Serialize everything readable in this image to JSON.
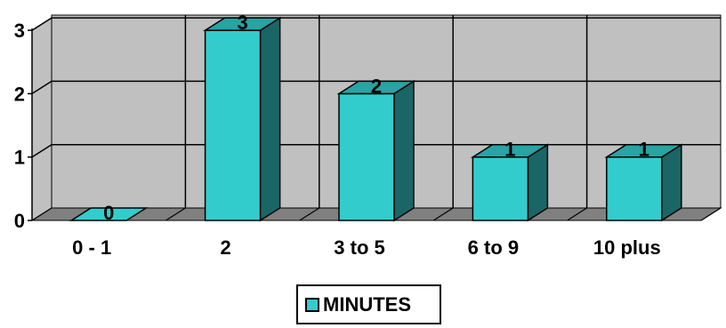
{
  "chart_data": {
    "type": "bar",
    "style": "3d",
    "categories": [
      "0 - 1",
      "2",
      "3 to 5",
      "6 to 9",
      "10 plus"
    ],
    "series": [
      {
        "name": "MINUTES",
        "values": [
          0,
          3,
          2,
          1,
          1
        ]
      }
    ],
    "yticks": [
      0,
      1,
      2,
      3
    ],
    "ylim": [
      0,
      3
    ],
    "data_labels": [
      "0",
      "3",
      "2",
      "1",
      "1"
    ],
    "grid": true,
    "legend": "bottom-center",
    "colors": {
      "bar_front": "#33cccc",
      "bar_side": "#1a6666",
      "bar_top": "#29a3a3",
      "plot_wall": "#c0c0c0",
      "plot_floor": "#808080"
    }
  }
}
